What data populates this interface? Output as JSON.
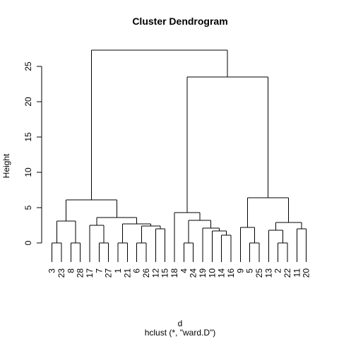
{
  "chart_data": {
    "type": "dendrogram",
    "title": "Cluster Dendrogram",
    "xlabel": "d",
    "sublabel": "hclust (*, \"ward.D\")",
    "ylabel": "Height",
    "ylim": [
      0,
      27.3
    ],
    "yticks": [
      0,
      5,
      10,
      15,
      20,
      25
    ],
    "leaves": [
      "3",
      "23",
      "8",
      "28",
      "17",
      "7",
      "27",
      "1",
      "21",
      "6",
      "26",
      "12",
      "15",
      "18",
      "4",
      "24",
      "19",
      "10",
      "14",
      "16",
      "9",
      "5",
      "25",
      "13",
      "2",
      "22",
      "11",
      "20"
    ],
    "merges": [
      {
        "left": "3",
        "right": "23",
        "height": 0.0
      },
      {
        "left": "8",
        "right": "28",
        "height": 0.0
      },
      {
        "left": "7",
        "right": "27",
        "height": 0.0
      },
      {
        "left": "1",
        "right": "21",
        "height": 0.0
      },
      {
        "left": "6",
        "right": "26",
        "height": 0.0
      },
      {
        "left": "4",
        "right": "24",
        "height": 0.0
      },
      {
        "left": "5",
        "right": "25",
        "height": 0.0
      },
      {
        "left": "2",
        "right": "22",
        "height": 0.0
      },
      {
        "left": "12",
        "right": "15",
        "height": 2.0
      },
      {
        "left": "14",
        "right": "16",
        "height": 1.1
      },
      {
        "left": "11",
        "right": "20",
        "height": 2.0
      },
      {
        "left": "(3,23)",
        "right": "(8,28)",
        "height": 3.1
      },
      {
        "left": "17",
        "right": "(7,27)",
        "height": 2.5
      },
      {
        "left": "(6,26)",
        "right": "(12,15)",
        "height": 2.4
      },
      {
        "left": "(1,21)",
        "right": "(6,26,12,15)",
        "height": 2.7
      },
      {
        "left": "(17,7,27)",
        "right": "(1,21,6,26,12,15)",
        "height": 3.6
      },
      {
        "left": "(3,23,8,28)",
        "right": "(17,7,27,1,21,6,26,12,15)",
        "height": 6.1
      },
      {
        "left": "10",
        "right": "(14,16)",
        "height": 1.7
      },
      {
        "left": "19",
        "right": "(10,14,16)",
        "height": 2.1
      },
      {
        "left": "(4,24)",
        "right": "(19,10,14,16)",
        "height": 3.2
      },
      {
        "left": "18",
        "right": "(4,24,19,10,14,16)",
        "height": 4.3
      },
      {
        "left": "9",
        "right": "(5,25)",
        "height": 2.2
      },
      {
        "left": "13",
        "right": "(2,22)",
        "height": 1.8
      },
      {
        "left": "(13,2,22)",
        "right": "(11,20)",
        "height": 2.9
      },
      {
        "left": "(9,5,25)",
        "right": "(13,2,22,11,20)",
        "height": 6.4
      },
      {
        "left": "(18,...,16)",
        "right": "(9,...,20)",
        "height": 23.5
      },
      {
        "left": "(3,...,15)",
        "right": "(18,...,20)",
        "height": 27.3
      }
    ]
  }
}
